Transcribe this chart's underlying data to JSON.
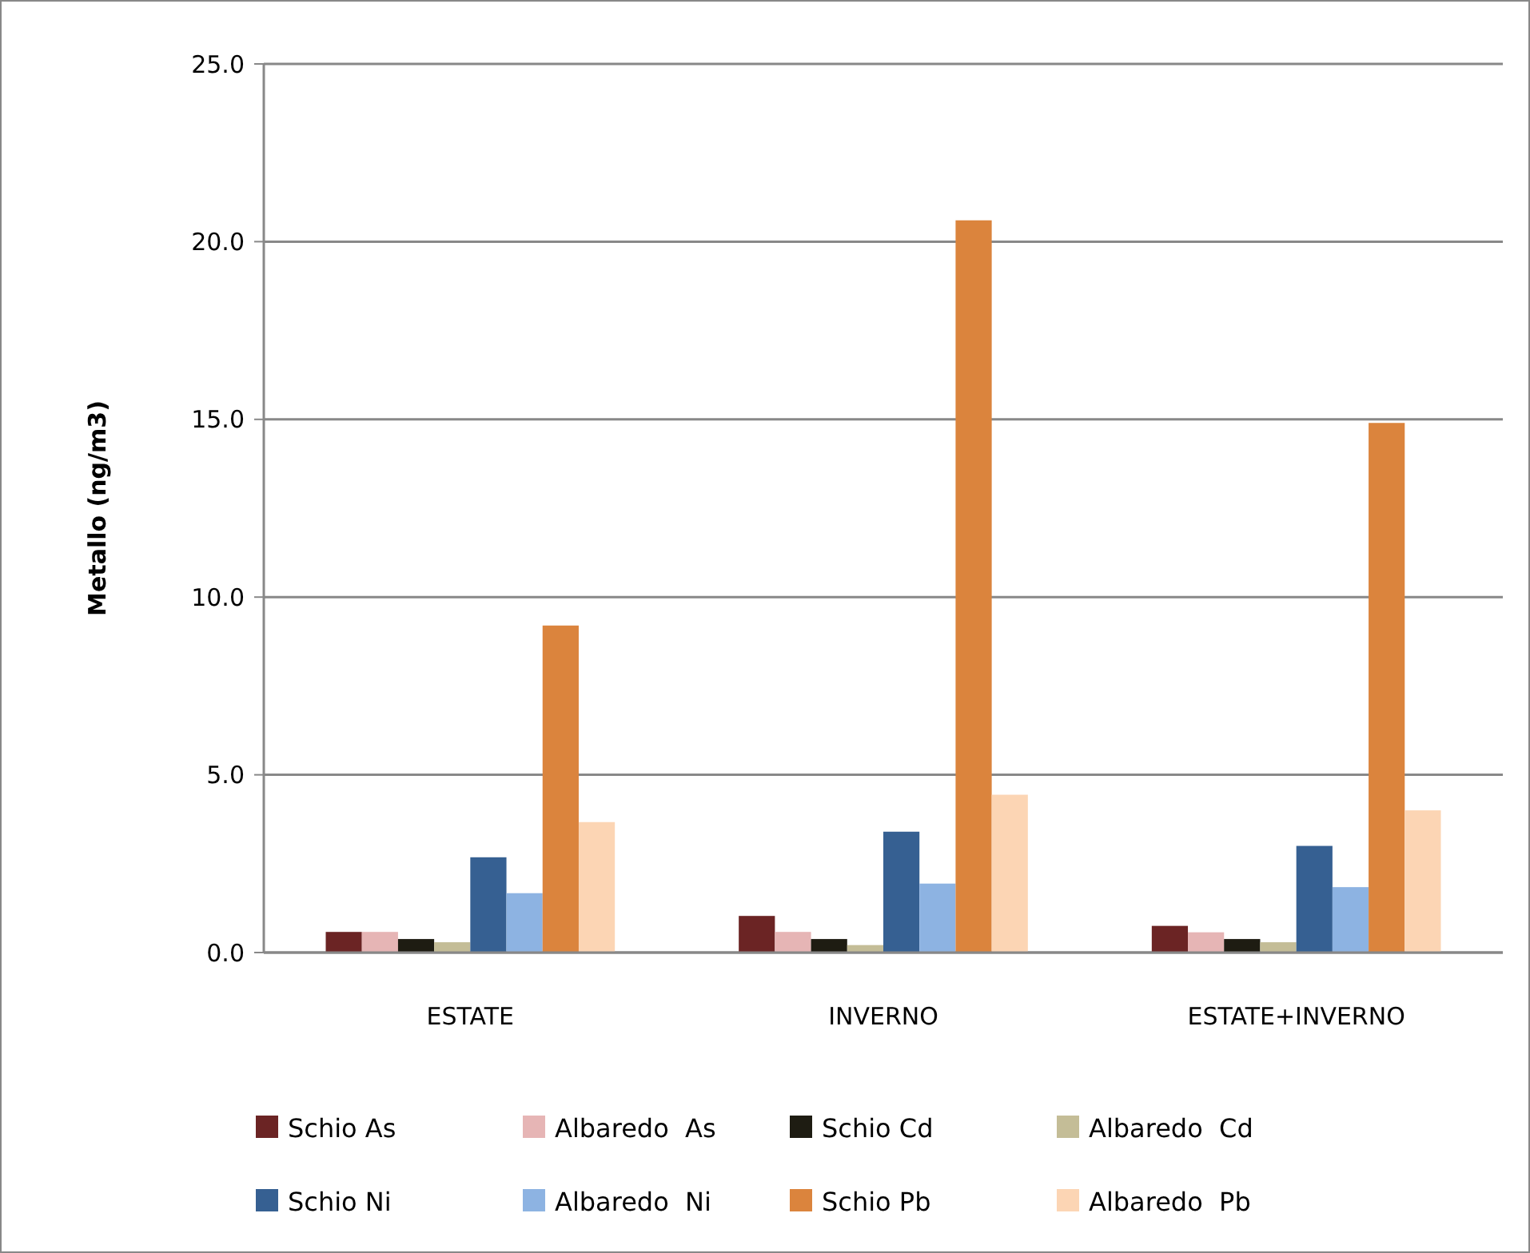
{
  "chart_data": {
    "type": "bar",
    "ylabel": "Metallo (ng/m3)",
    "categories": [
      "ESTATE",
      "INVERNO",
      "ESTATE+INVERNO"
    ],
    "series": [
      {
        "name": "Schio As",
        "color": "#6b2424",
        "values": [
          0.58,
          1.03,
          0.75
        ]
      },
      {
        "name": "Albaredo  As",
        "color": "#e6b5b5",
        "values": [
          0.58,
          0.58,
          0.57
        ]
      },
      {
        "name": "Schio Cd",
        "color": "#1e1c12",
        "values": [
          0.38,
          0.38,
          0.38
        ]
      },
      {
        "name": "Albaredo  Cd",
        "color": "#c4bd97",
        "values": [
          0.29,
          0.21,
          0.29
        ]
      },
      {
        "name": "Schio Ni",
        "color": "#366092",
        "values": [
          2.68,
          3.4,
          3.0
        ]
      },
      {
        "name": "Albaredo  Ni",
        "color": "#8db3e2",
        "values": [
          1.67,
          1.94,
          1.84
        ]
      },
      {
        "name": "Schio Pb",
        "color": "#db843d",
        "values": [
          9.2,
          20.6,
          14.9
        ]
      },
      {
        "name": "Albaredo  Pb",
        "color": "#fcd5b4",
        "values": [
          3.67,
          4.44,
          4.0
        ]
      }
    ],
    "ylim": [
      0,
      25
    ],
    "yticks": [
      {
        "value": 0,
        "label": "0.0"
      },
      {
        "value": 5,
        "label": "5.0"
      },
      {
        "value": 10,
        "label": "10.0"
      },
      {
        "value": 15,
        "label": "15.0"
      },
      {
        "value": 20,
        "label": "20.0"
      },
      {
        "value": 25,
        "label": "25.0"
      }
    ],
    "grid": "y",
    "legend": "bottom"
  }
}
